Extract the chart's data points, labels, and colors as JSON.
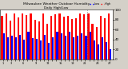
{
  "title": "Milwaukee Weather Outdoor Humidity",
  "subtitle": "Daily High/Low",
  "background_color": "#d4d0c8",
  "plot_bg_color": "#ffffff",
  "high_color": "#ff0000",
  "low_color": "#0000ff",
  "high_values": [
    87,
    93,
    78,
    93,
    84,
    92,
    89,
    93,
    80,
    76,
    93,
    72,
    87,
    90,
    93,
    86,
    87,
    81,
    83,
    93,
    91,
    93,
    72,
    65,
    87,
    82,
    93
  ],
  "low_values": [
    52,
    45,
    48,
    45,
    50,
    40,
    55,
    43,
    42,
    38,
    50,
    33,
    45,
    55,
    52,
    48,
    55,
    45,
    47,
    52,
    48,
    55,
    38,
    30,
    45,
    35,
    20
  ],
  "ylim": [
    0,
    100
  ],
  "yticks": [
    0,
    20,
    40,
    60,
    80,
    100
  ],
  "dotted_line_x": 20.5,
  "legend_high": "High",
  "legend_low": "Low"
}
